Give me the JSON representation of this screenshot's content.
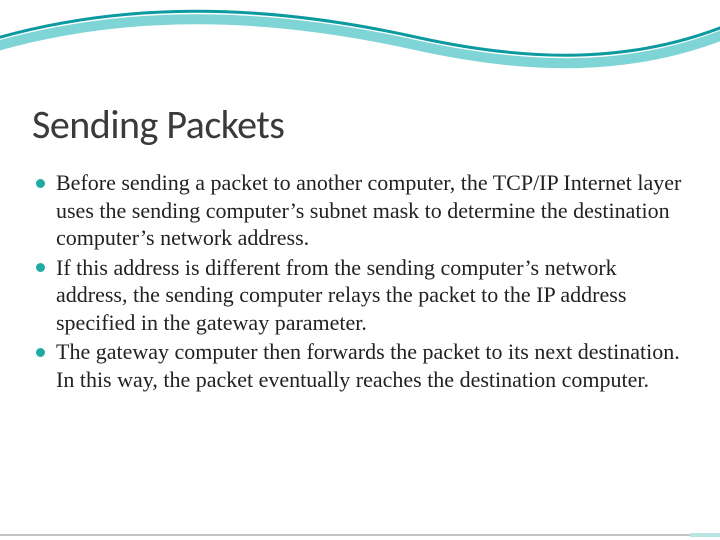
{
  "slide": {
    "title": "Sending Packets",
    "title_fontsize": 40,
    "title_color": "#3a3a3a",
    "body_fontsize": 22,
    "body_color": "#222222",
    "line_height": 1.25,
    "bullets": [
      "Before sending a packet to another computer, the TCP/IP Internet layer uses the sending computer’s subnet mask to determine the destination computer’s network address.",
      "If this address is different from the sending computer’s network address, the sending computer relays the packet to the IP address specified in the gateway parameter.",
      "The gateway computer then forwards the packet to its next destination. In this way, the packet eventually reaches the destination computer."
    ],
    "bullet_color": "#1faaa3",
    "swoosh": {
      "outer_stroke": "#7fd4d6",
      "inner_stroke": "#0b9aa0",
      "fill_top": "#ffffff"
    },
    "footer": {
      "line_color": "#8a8a8a",
      "accent_color": "#b8e4e4"
    },
    "background_color": "#ffffff"
  }
}
